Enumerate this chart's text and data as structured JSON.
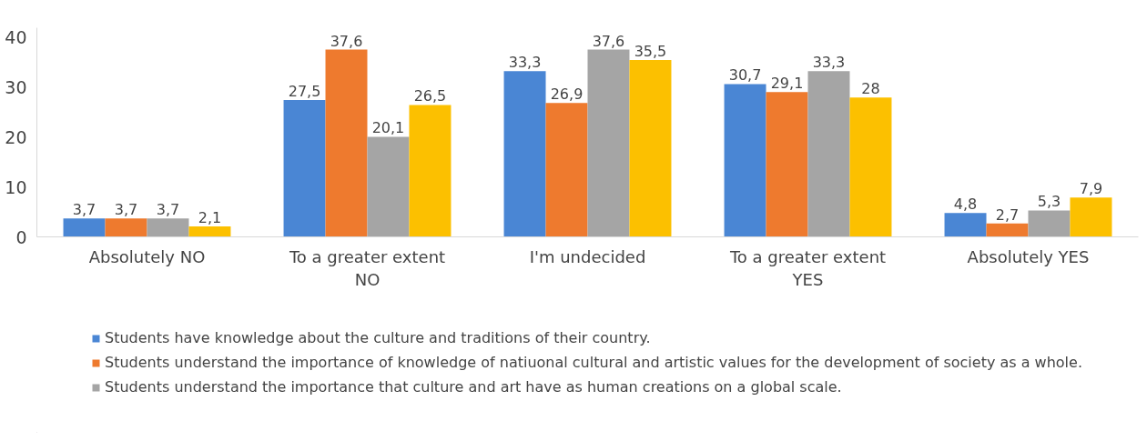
{
  "chart_data": {
    "type": "bar",
    "categories": [
      "Absolutely NO",
      "To a greater extent NO",
      "I'm undecided",
      "To a greater extent YES",
      "Absolutely YES"
    ],
    "series": [
      {
        "name": "Students have knowledge about the culture and traditions of their country.",
        "color": "#4a86d4",
        "values": [
          3.7,
          27.5,
          33.3,
          30.7,
          4.8
        ],
        "value_labels": [
          "3,7",
          "27,5",
          "33,3",
          "30,7",
          "4,8"
        ]
      },
      {
        "name": "Students understand the importance of knowledge of natiuonal cultural and artistic values for the development of society as a whole.",
        "color": "#ee7a2e",
        "values": [
          3.7,
          37.6,
          26.9,
          29.1,
          2.7
        ],
        "value_labels": [
          "3,7",
          "37,6",
          "26,9",
          "29,1",
          "2,7"
        ]
      },
      {
        "name": "Students understand the importance that culture and art have as human creations on a global scale.",
        "color": "#a5a5a5",
        "values": [
          3.7,
          20.1,
          37.6,
          33.3,
          5.3
        ],
        "value_labels": [
          "3,7",
          "20,1",
          "37,6",
          "33,3",
          "5,3"
        ]
      },
      {
        "color": "#fcc000",
        "values": [
          2.1,
          26.5,
          35.5,
          28,
          7.9
        ],
        "value_labels": [
          "2,1",
          "26,5",
          "35,5",
          "28",
          "7,9"
        ]
      }
    ],
    "ylim": [
      0,
      42
    ],
    "yticks": [
      0,
      10,
      20,
      30,
      40
    ],
    "grid": false,
    "legend": "bottom"
  }
}
